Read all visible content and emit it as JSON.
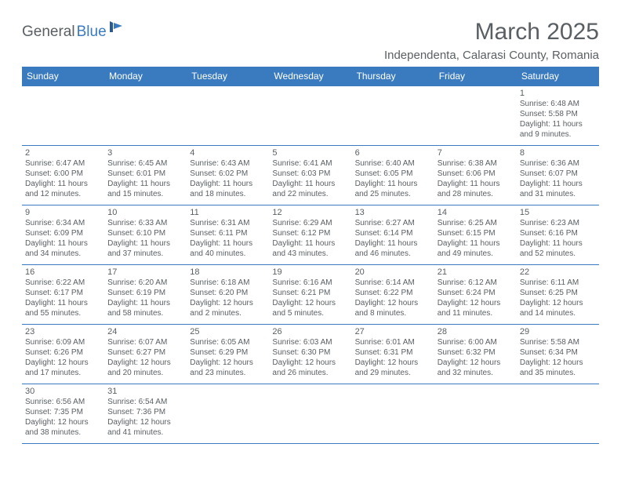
{
  "logo": {
    "part1": "General",
    "part2": "Blue"
  },
  "title": "March 2025",
  "location": "Independenta, Calarasi County, Romania",
  "colors": {
    "header_bg": "#3a7bbf",
    "header_text": "#ffffff",
    "border": "#3a7bbf",
    "text": "#5a5f63",
    "page_bg": "#ffffff"
  },
  "dayNames": [
    "Sunday",
    "Monday",
    "Tuesday",
    "Wednesday",
    "Thursday",
    "Friday",
    "Saturday"
  ],
  "weeks": [
    [
      null,
      null,
      null,
      null,
      null,
      null,
      {
        "n": "1",
        "sr": "6:48 AM",
        "ss": "5:58 PM",
        "dl": "11 hours and 9 minutes."
      }
    ],
    [
      {
        "n": "2",
        "sr": "6:47 AM",
        "ss": "6:00 PM",
        "dl": "11 hours and 12 minutes."
      },
      {
        "n": "3",
        "sr": "6:45 AM",
        "ss": "6:01 PM",
        "dl": "11 hours and 15 minutes."
      },
      {
        "n": "4",
        "sr": "6:43 AM",
        "ss": "6:02 PM",
        "dl": "11 hours and 18 minutes."
      },
      {
        "n": "5",
        "sr": "6:41 AM",
        "ss": "6:03 PM",
        "dl": "11 hours and 22 minutes."
      },
      {
        "n": "6",
        "sr": "6:40 AM",
        "ss": "6:05 PM",
        "dl": "11 hours and 25 minutes."
      },
      {
        "n": "7",
        "sr": "6:38 AM",
        "ss": "6:06 PM",
        "dl": "11 hours and 28 minutes."
      },
      {
        "n": "8",
        "sr": "6:36 AM",
        "ss": "6:07 PM",
        "dl": "11 hours and 31 minutes."
      }
    ],
    [
      {
        "n": "9",
        "sr": "6:34 AM",
        "ss": "6:09 PM",
        "dl": "11 hours and 34 minutes."
      },
      {
        "n": "10",
        "sr": "6:33 AM",
        "ss": "6:10 PM",
        "dl": "11 hours and 37 minutes."
      },
      {
        "n": "11",
        "sr": "6:31 AM",
        "ss": "6:11 PM",
        "dl": "11 hours and 40 minutes."
      },
      {
        "n": "12",
        "sr": "6:29 AM",
        "ss": "6:12 PM",
        "dl": "11 hours and 43 minutes."
      },
      {
        "n": "13",
        "sr": "6:27 AM",
        "ss": "6:14 PM",
        "dl": "11 hours and 46 minutes."
      },
      {
        "n": "14",
        "sr": "6:25 AM",
        "ss": "6:15 PM",
        "dl": "11 hours and 49 minutes."
      },
      {
        "n": "15",
        "sr": "6:23 AM",
        "ss": "6:16 PM",
        "dl": "11 hours and 52 minutes."
      }
    ],
    [
      {
        "n": "16",
        "sr": "6:22 AM",
        "ss": "6:17 PM",
        "dl": "11 hours and 55 minutes."
      },
      {
        "n": "17",
        "sr": "6:20 AM",
        "ss": "6:19 PM",
        "dl": "11 hours and 58 minutes."
      },
      {
        "n": "18",
        "sr": "6:18 AM",
        "ss": "6:20 PM",
        "dl": "12 hours and 2 minutes."
      },
      {
        "n": "19",
        "sr": "6:16 AM",
        "ss": "6:21 PM",
        "dl": "12 hours and 5 minutes."
      },
      {
        "n": "20",
        "sr": "6:14 AM",
        "ss": "6:22 PM",
        "dl": "12 hours and 8 minutes."
      },
      {
        "n": "21",
        "sr": "6:12 AM",
        "ss": "6:24 PM",
        "dl": "12 hours and 11 minutes."
      },
      {
        "n": "22",
        "sr": "6:11 AM",
        "ss": "6:25 PM",
        "dl": "12 hours and 14 minutes."
      }
    ],
    [
      {
        "n": "23",
        "sr": "6:09 AM",
        "ss": "6:26 PM",
        "dl": "12 hours and 17 minutes."
      },
      {
        "n": "24",
        "sr": "6:07 AM",
        "ss": "6:27 PM",
        "dl": "12 hours and 20 minutes."
      },
      {
        "n": "25",
        "sr": "6:05 AM",
        "ss": "6:29 PM",
        "dl": "12 hours and 23 minutes."
      },
      {
        "n": "26",
        "sr": "6:03 AM",
        "ss": "6:30 PM",
        "dl": "12 hours and 26 minutes."
      },
      {
        "n": "27",
        "sr": "6:01 AM",
        "ss": "6:31 PM",
        "dl": "12 hours and 29 minutes."
      },
      {
        "n": "28",
        "sr": "6:00 AM",
        "ss": "6:32 PM",
        "dl": "12 hours and 32 minutes."
      },
      {
        "n": "29",
        "sr": "5:58 AM",
        "ss": "6:34 PM",
        "dl": "12 hours and 35 minutes."
      }
    ],
    [
      {
        "n": "30",
        "sr": "6:56 AM",
        "ss": "7:35 PM",
        "dl": "12 hours and 38 minutes."
      },
      {
        "n": "31",
        "sr": "6:54 AM",
        "ss": "7:36 PM",
        "dl": "12 hours and 41 minutes."
      },
      null,
      null,
      null,
      null,
      null
    ]
  ],
  "labels": {
    "sunrise": "Sunrise:",
    "sunset": "Sunset:",
    "daylight": "Daylight:"
  }
}
